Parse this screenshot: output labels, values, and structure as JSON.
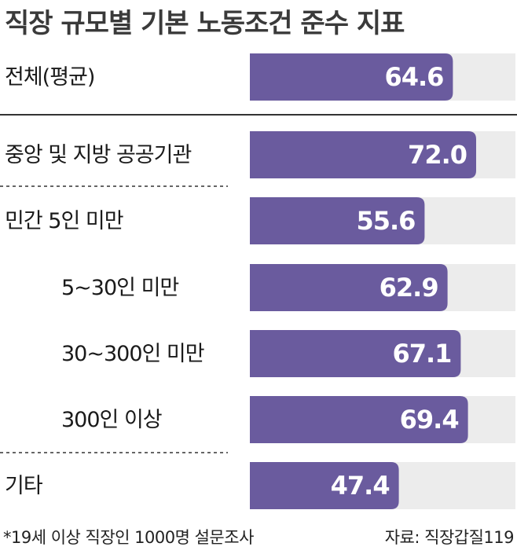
{
  "colors": {
    "bar": "#6a5b9e",
    "track": "#ececec",
    "text_on_bar": "#ffffff",
    "divider": "#333333"
  },
  "chart_data": {
    "type": "bar",
    "orientation": "horizontal",
    "title": "직장 규모별 기본 노동조건 준수 지표",
    "xlim": [
      0,
      100
    ],
    "categories": [
      "전체(평균)",
      "중앙 및 지방 공공기관",
      "민간  5인 미만",
      "5~30인 미만",
      "30~300인 미만",
      "300인 이상",
      "기타"
    ],
    "values": [
      64.6,
      72.0,
      55.6,
      62.9,
      67.1,
      69.4,
      47.4
    ],
    "data_labels": [
      "64.6",
      "72.0",
      "55.6",
      "62.9",
      "67.1",
      "69.4",
      "47.4"
    ]
  },
  "footnote": "*19세 이상 직장인 1000명 설문조사",
  "source": "자료: 직장갑질119"
}
